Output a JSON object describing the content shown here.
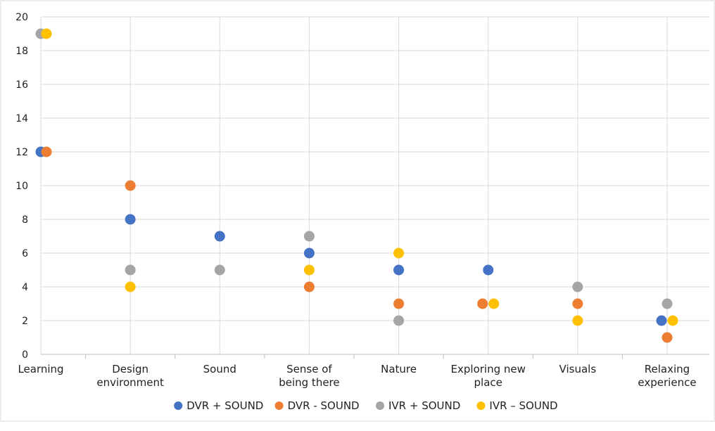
{
  "chart_data": {
    "type": "scatter",
    "title": "",
    "xlabel": "",
    "ylabel": "",
    "ylim": [
      0,
      20
    ],
    "yticks": [
      0,
      2,
      4,
      6,
      8,
      10,
      12,
      14,
      16,
      18,
      20
    ],
    "grid": true,
    "legend_position": "bottom",
    "categories": [
      [
        "Learning"
      ],
      [
        "Design",
        "environment"
      ],
      [
        "Sound"
      ],
      [
        "Sense of",
        "being there"
      ],
      [
        "Nature"
      ],
      [
        "Exploring new",
        "place"
      ],
      [
        "Visuals"
      ],
      [
        "Relaxing",
        "experience"
      ]
    ],
    "series": [
      {
        "name": "DVR + SOUND",
        "color": "#4472C4",
        "values": [
          12,
          8,
          7,
          6,
          5,
          5,
          null,
          2
        ]
      },
      {
        "name": "DVR - SOUND",
        "color": "#ED7D31",
        "values": [
          12,
          10,
          null,
          4,
          3,
          3,
          3,
          1
        ]
      },
      {
        "name": "IVR + SOUND",
        "color": "#A5A5A5",
        "values": [
          19,
          5,
          5,
          7,
          2,
          null,
          4,
          3
        ]
      },
      {
        "name": "IVR – SOUND",
        "color": "#FFC000",
        "values": [
          19,
          4,
          null,
          5,
          6,
          3,
          2,
          2
        ]
      }
    ]
  }
}
